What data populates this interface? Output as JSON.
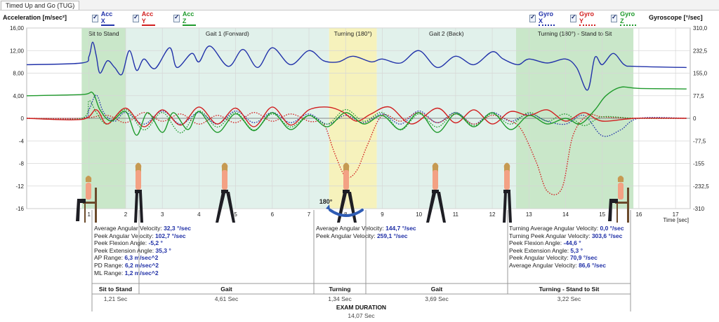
{
  "tab": {
    "label": "Timed Up and Go (TUG)"
  },
  "left_axis": {
    "title": "Acceleration [m/sec²]",
    "ticks": [
      "16,00",
      "12,00",
      "8,00",
      "4,00",
      "0",
      "-4",
      "-8",
      "-12",
      "-16"
    ]
  },
  "right_axis": {
    "title": "Gyroscope [°/sec]",
    "ticks": [
      "310,0",
      "232,5",
      "155,0",
      "77,5",
      "0",
      "-77,5",
      "-155",
      "-232,5",
      "-310"
    ]
  },
  "legend_left": [
    {
      "label": "Acc X",
      "color": "#2233aa",
      "style": "solid"
    },
    {
      "label": "Acc Y",
      "color": "#d11f1f",
      "style": "solid"
    },
    {
      "label": "Acc Z",
      "color": "#1f9a2c",
      "style": "solid"
    }
  ],
  "legend_right": [
    {
      "label": "Gyro X",
      "color": "#2233aa",
      "style": "dotted"
    },
    {
      "label": "Gyro Y",
      "color": "#d11f1f",
      "style": "dotted"
    },
    {
      "label": "Gyro Z",
      "color": "#1f9a2c",
      "style": "dotted"
    }
  ],
  "phases_chart": [
    {
      "label": "Sit to Stand",
      "start": 0.8,
      "end": 2.0,
      "color": "#bfe3bf"
    },
    {
      "label": "Gait 1 (Forward)",
      "start": 2.0,
      "end": 7.55,
      "color": "#dcefe8"
    },
    {
      "label": "Turning (180°)",
      "start": 7.55,
      "end": 8.85,
      "color": "#f4f0b0"
    },
    {
      "label": "Gait 2 (Back)",
      "start": 8.85,
      "end": 12.65,
      "color": "#dcefe8"
    },
    {
      "label": "Turning (180°) - Stand to Sit",
      "start": 12.65,
      "end": 15.85,
      "color": "#bfe3bf"
    }
  ],
  "x_axis": {
    "label": "Time [sec]",
    "ticks": [
      "1",
      "2",
      "3",
      "4",
      "5",
      "6",
      "7",
      "8",
      "9",
      "10",
      "11",
      "12",
      "13",
      "14",
      "15",
      "16",
      "17"
    ]
  },
  "turn_label": "180°",
  "chart_data": {
    "type": "line",
    "xlabel": "Time [sec]",
    "ylabel": "Acceleration [m/sec²]",
    "ylabel_right": "Gyroscope [°/sec]",
    "xlim": [
      -0.7,
      17.4
    ],
    "ylim": [
      -16,
      16
    ],
    "ylim_right": [
      -310,
      310
    ],
    "grid": true,
    "series": [
      {
        "name": "Acc X",
        "axis": "left",
        "x": [
          -0.7,
          0.8,
          1.0,
          1.1,
          1.2,
          1.3,
          1.5,
          1.7,
          1.9,
          2.1,
          2.3,
          2.5,
          2.8,
          3.2,
          3.4,
          3.8,
          4.0,
          4.3,
          4.8,
          5.2,
          5.6,
          6.0,
          6.5,
          7.0,
          7.4,
          7.8,
          8.2,
          8.7,
          9.0,
          9.5,
          10.0,
          10.5,
          11.0,
          11.5,
          12.0,
          12.3,
          12.7,
          13.0,
          13.5,
          14.0,
          14.3,
          14.6,
          14.8,
          15.0,
          15.3,
          15.6,
          15.9,
          17.3
        ],
        "y": [
          9.5,
          9.8,
          11.0,
          13.5,
          11.0,
          8.0,
          10.2,
          9.0,
          7.8,
          12.0,
          8.5,
          10.5,
          8.8,
          12.5,
          9.0,
          11.5,
          10.0,
          12.8,
          9.2,
          12.2,
          9.0,
          12.5,
          9.5,
          12.0,
          10.2,
          10.0,
          11.0,
          10.0,
          10.5,
          9.8,
          12.0,
          9.0,
          11.0,
          9.5,
          11.8,
          10.5,
          9.5,
          10.5,
          9.8,
          10.5,
          9.0,
          5.0,
          10.8,
          9.5,
          11.5,
          9.5,
          9.2,
          9.0
        ]
      },
      {
        "name": "Acc Y",
        "axis": "left",
        "x": [
          -0.7,
          0.8,
          1.2,
          1.5,
          2.0,
          2.5,
          3.0,
          3.5,
          4.0,
          4.5,
          5.0,
          5.5,
          6.0,
          6.5,
          7.0,
          7.5,
          7.9,
          8.3,
          8.7,
          9.2,
          9.8,
          10.5,
          11.0,
          11.5,
          12.0,
          12.5,
          13.0,
          13.5,
          14.0,
          14.5,
          15.0,
          15.9,
          17.3
        ],
        "y": [
          0.0,
          -0.2,
          1.5,
          -1.0,
          1.8,
          -1.5,
          1.5,
          -1.2,
          2.0,
          -1.0,
          1.8,
          -1.5,
          2.0,
          -1.2,
          1.5,
          2.0,
          1.2,
          -0.5,
          0.8,
          2.0,
          -1.0,
          1.8,
          -0.8,
          1.5,
          -1.0,
          1.2,
          0.5,
          1.5,
          -0.5,
          1.0,
          -0.5,
          0.0,
          0.0
        ]
      },
      {
        "name": "Acc Z",
        "axis": "left",
        "x": [
          -0.7,
          0.8,
          1.1,
          1.3,
          1.6,
          2.0,
          2.3,
          2.6,
          3.0,
          3.3,
          3.7,
          4.0,
          4.5,
          5.0,
          5.5,
          6.0,
          6.5,
          7.0,
          7.5,
          8.0,
          8.5,
          9.0,
          9.5,
          10.0,
          10.5,
          11.0,
          11.5,
          12.0,
          12.5,
          13.0,
          13.5,
          14.0,
          14.4,
          14.8,
          15.1,
          15.5,
          16.0,
          17.3
        ],
        "y": [
          4.0,
          4.2,
          4.5,
          1.5,
          -0.5,
          1.2,
          -3.0,
          1.0,
          -2.5,
          1.0,
          -2.0,
          1.2,
          -2.5,
          0.8,
          -2.2,
          1.0,
          -2.0,
          0.5,
          -1.5,
          1.0,
          -1.0,
          0.5,
          -2.0,
          1.0,
          -2.5,
          0.8,
          -1.5,
          1.0,
          -2.0,
          0.5,
          -1.0,
          0.0,
          -1.0,
          1.5,
          4.0,
          5.5,
          5.3,
          5.2
        ]
      },
      {
        "name": "Gyro X",
        "axis": "right",
        "x": [
          -0.7,
          0.8,
          1.0,
          1.2,
          1.4,
          1.7,
          2.0,
          2.5,
          3.0,
          3.5,
          4.0,
          4.5,
          5.0,
          5.5,
          6.0,
          6.5,
          7.0,
          7.5,
          8.0,
          8.5,
          9.0,
          9.5,
          10.0,
          10.5,
          11.0,
          11.5,
          12.0,
          12.5,
          13.0,
          13.5,
          14.0,
          14.5,
          15.0,
          15.5,
          16.0,
          17.3
        ],
        "y": [
          0,
          0,
          30,
          80,
          20,
          -10,
          20,
          -20,
          25,
          -20,
          20,
          -20,
          25,
          -15,
          20,
          -15,
          15,
          -20,
          10,
          -15,
          15,
          -20,
          25,
          -15,
          20,
          -20,
          20,
          -10,
          15,
          -10,
          -20,
          10,
          -60,
          -40,
          0,
          0
        ]
      },
      {
        "name": "Gyro Y",
        "axis": "right",
        "x": [
          -0.7,
          0.8,
          1.5,
          2.0,
          2.5,
          3.0,
          3.5,
          4.0,
          4.5,
          5.0,
          5.5,
          6.0,
          6.5,
          7.0,
          7.4,
          7.7,
          8.0,
          8.3,
          8.6,
          9.0,
          9.5,
          10.0,
          10.5,
          11.0,
          11.5,
          12.0,
          12.5,
          12.8,
          13.2,
          13.5,
          13.9,
          14.2,
          14.6,
          15.0,
          15.9,
          17.3
        ],
        "y": [
          0,
          0,
          10,
          -15,
          20,
          -10,
          15,
          -20,
          10,
          -15,
          20,
          -10,
          15,
          -10,
          -20,
          -120,
          -200,
          -180,
          -90,
          10,
          -10,
          20,
          -15,
          15,
          -20,
          10,
          -10,
          -40,
          -150,
          -250,
          -240,
          -60,
          10,
          5,
          0,
          0
        ]
      },
      {
        "name": "Gyro Z",
        "axis": "right",
        "x": [
          -0.7,
          0.8,
          1.0,
          1.2,
          1.5,
          2.0,
          2.5,
          3.0,
          3.5,
          4.0,
          4.5,
          5.0,
          5.5,
          6.0,
          6.5,
          7.0,
          7.5,
          8.0,
          8.5,
          9.0,
          9.5,
          10.0,
          10.5,
          11.0,
          11.5,
          12.0,
          12.5,
          13.0,
          13.5,
          14.0,
          14.5,
          15.0,
          15.9,
          17.3
        ],
        "y": [
          0,
          0,
          60,
          20,
          -20,
          30,
          -40,
          20,
          -50,
          25,
          -30,
          20,
          -40,
          15,
          -30,
          10,
          -20,
          30,
          -10,
          20,
          -40,
          15,
          -30,
          20,
          -25,
          15,
          -20,
          20,
          -10,
          15,
          -25,
          5,
          0,
          0
        ]
      }
    ]
  },
  "stats_sit_to_stand": [
    {
      "label": "Average Angular Velocity:",
      "value": "32,3 °/sec"
    },
    {
      "label": "Peek Angular Velocity:",
      "value": "102,7 °/sec"
    },
    {
      "label": "Peek Flexion Angle:",
      "value": "-5,2 °"
    },
    {
      "label": "Peek Extension Angle:",
      "value": "35,3 °"
    },
    {
      "label": "AP Range:",
      "value": "6,3 m/sec^2"
    },
    {
      "label": "PD Range:",
      "value": "6,2 m/sec^2"
    },
    {
      "label": "ML Range:",
      "value": "1,2 m/sec^2"
    }
  ],
  "stats_turning": [
    {
      "label": "Average Angular Velocity:",
      "value": "144,7 °/sec"
    },
    {
      "label": "Peek Angular Velocity:",
      "value": "259,1 °/sec"
    }
  ],
  "stats_turn_to_sit": [
    {
      "label": "Turning Average Angular Velocity:",
      "value": "0,0 °/sec"
    },
    {
      "label": "Turning Peek Angular Velocity:",
      "value": "303,6 °/sec"
    },
    {
      "label": "Peek Flexion Angle:",
      "value": "-44,6 °"
    },
    {
      "label": "Peek Extension Angle:",
      "value": "5,3 °"
    },
    {
      "label": "Peek Angular Velocity:",
      "value": "70,9 °/sec"
    },
    {
      "label": "Average Angular Velocity:",
      "value": "86,6 °/sec"
    }
  ],
  "summary": [
    {
      "phase": "Sit to Stand",
      "duration": "1,21 Sec"
    },
    {
      "phase": "Gait",
      "duration": "4,61 Sec"
    },
    {
      "phase": "Turning",
      "duration": "1,34 Sec"
    },
    {
      "phase": "Gait",
      "duration": "3,69 Sec"
    },
    {
      "phase": "Turning - Stand to Sit",
      "duration": "3,22 Sec"
    }
  ],
  "exam": {
    "label": "EXAM DURATION",
    "value": "14,07 Sec"
  }
}
